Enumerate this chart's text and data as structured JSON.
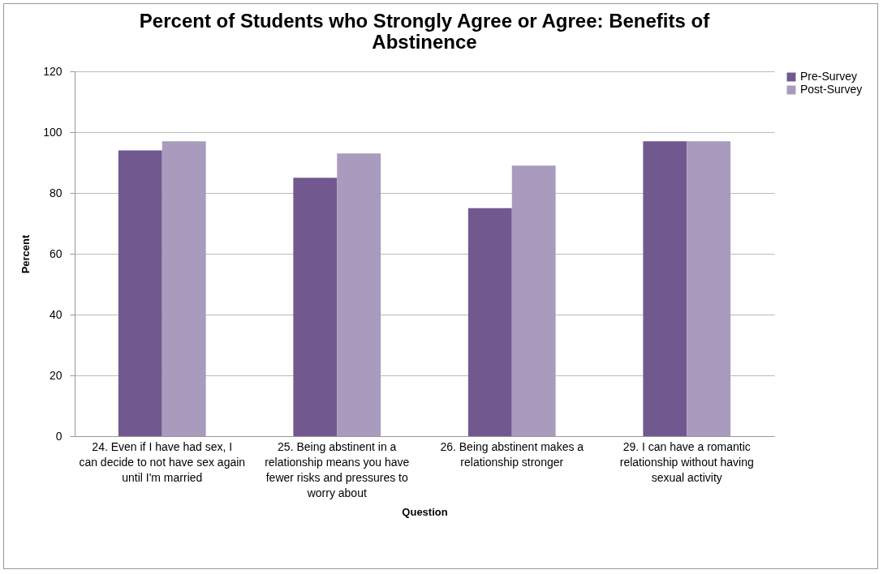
{
  "chart_data": {
    "type": "bar",
    "title": "Percent of Students who Strongly Agree or Agree: Benefits of Abstinence",
    "xlabel": "Question",
    "ylabel": "Percent",
    "categories": [
      "24. Even if I have had sex, I can decide to not have sex again until I'm married",
      "25. Being abstinent in a relationship means you have fewer risks and pressures to worry about",
      "26. Being abstinent makes a relationship stronger",
      "29. I can have a romantic relationship without having sexual activity"
    ],
    "series": [
      {
        "name": "Pre-Survey",
        "color": "#71598f",
        "values": [
          94,
          85,
          75,
          97
        ]
      },
      {
        "name": "Post-Survey",
        "color": "#a99bbe",
        "values": [
          97,
          93,
          89,
          97
        ]
      }
    ],
    "ylim": [
      0,
      120
    ],
    "yticks": [
      0,
      20,
      40,
      60,
      80,
      100,
      120
    ],
    "grid": "y",
    "legend": "right"
  }
}
